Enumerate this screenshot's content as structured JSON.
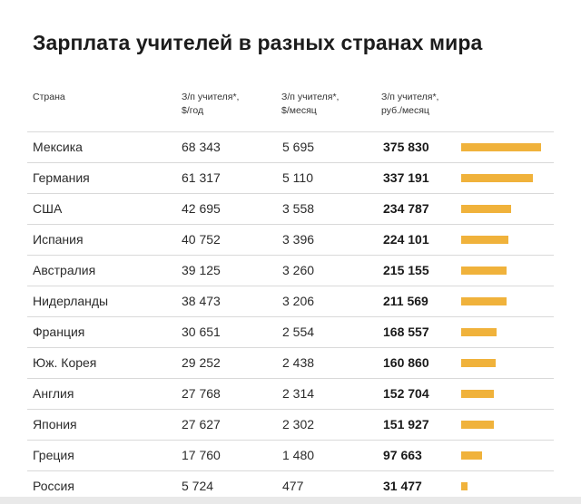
{
  "title": "Зарплата учителей в разных странах мира",
  "headers": {
    "country": "Страна",
    "col1": [
      "З/п учителя*,",
      "$/год"
    ],
    "col2": [
      "З/п учителя*,",
      "$/месяц"
    ],
    "col3": [
      "З/п учителя*,",
      "руб./месяц"
    ]
  },
  "colors": {
    "bar": "#f0b23b"
  },
  "rows": [
    {
      "country": "Мексика",
      "year": "68 343",
      "month": "5 695",
      "rub": "375 830"
    },
    {
      "country": "Германия",
      "year": "61 317",
      "month": "5 110",
      "rub": "337 191"
    },
    {
      "country": "США",
      "year": "42 695",
      "month": "3 558",
      "rub": "234 787"
    },
    {
      "country": "Испания",
      "year": "40 752",
      "month": "3 396",
      "rub": "224 101"
    },
    {
      "country": "Австралия",
      "year": "39 125",
      "month": "3 260",
      "rub": "215 155"
    },
    {
      "country": "Нидерланды",
      "year": "38 473",
      "month": "3 206",
      "rub": "211 569"
    },
    {
      "country": "Франция",
      "year": "30 651",
      "month": "2 554",
      "rub": "168 557"
    },
    {
      "country": "Юж. Корея",
      "year": "29 252",
      "month": "2 438",
      "rub": "160 860"
    },
    {
      "country": "Англия",
      "year": "27 768",
      "month": "2 314",
      "rub": "152 704"
    },
    {
      "country": "Япония",
      "year": "27 627",
      "month": "2 302",
      "rub": "151 927"
    },
    {
      "country": "Греция",
      "year": "17 760",
      "month": "1 480",
      "rub": "97 663"
    },
    {
      "country": "Россия",
      "year": "5 724",
      "month": "477",
      "rub": "31 477"
    }
  ],
  "chart_data": {
    "type": "bar",
    "categories": [
      "Мексика",
      "Германия",
      "США",
      "Испания",
      "Австралия",
      "Нидерланды",
      "Франция",
      "Юж. Корея",
      "Англия",
      "Япония",
      "Греция",
      "Россия"
    ],
    "values": [
      375830,
      337191,
      234787,
      224101,
      215155,
      211569,
      168557,
      160860,
      152704,
      151927,
      97663,
      31477
    ],
    "title": "Зарплата учителей в разных странах мира",
    "xlabel": "",
    "ylabel": "",
    "ylim": [
      0,
      375830
    ]
  }
}
